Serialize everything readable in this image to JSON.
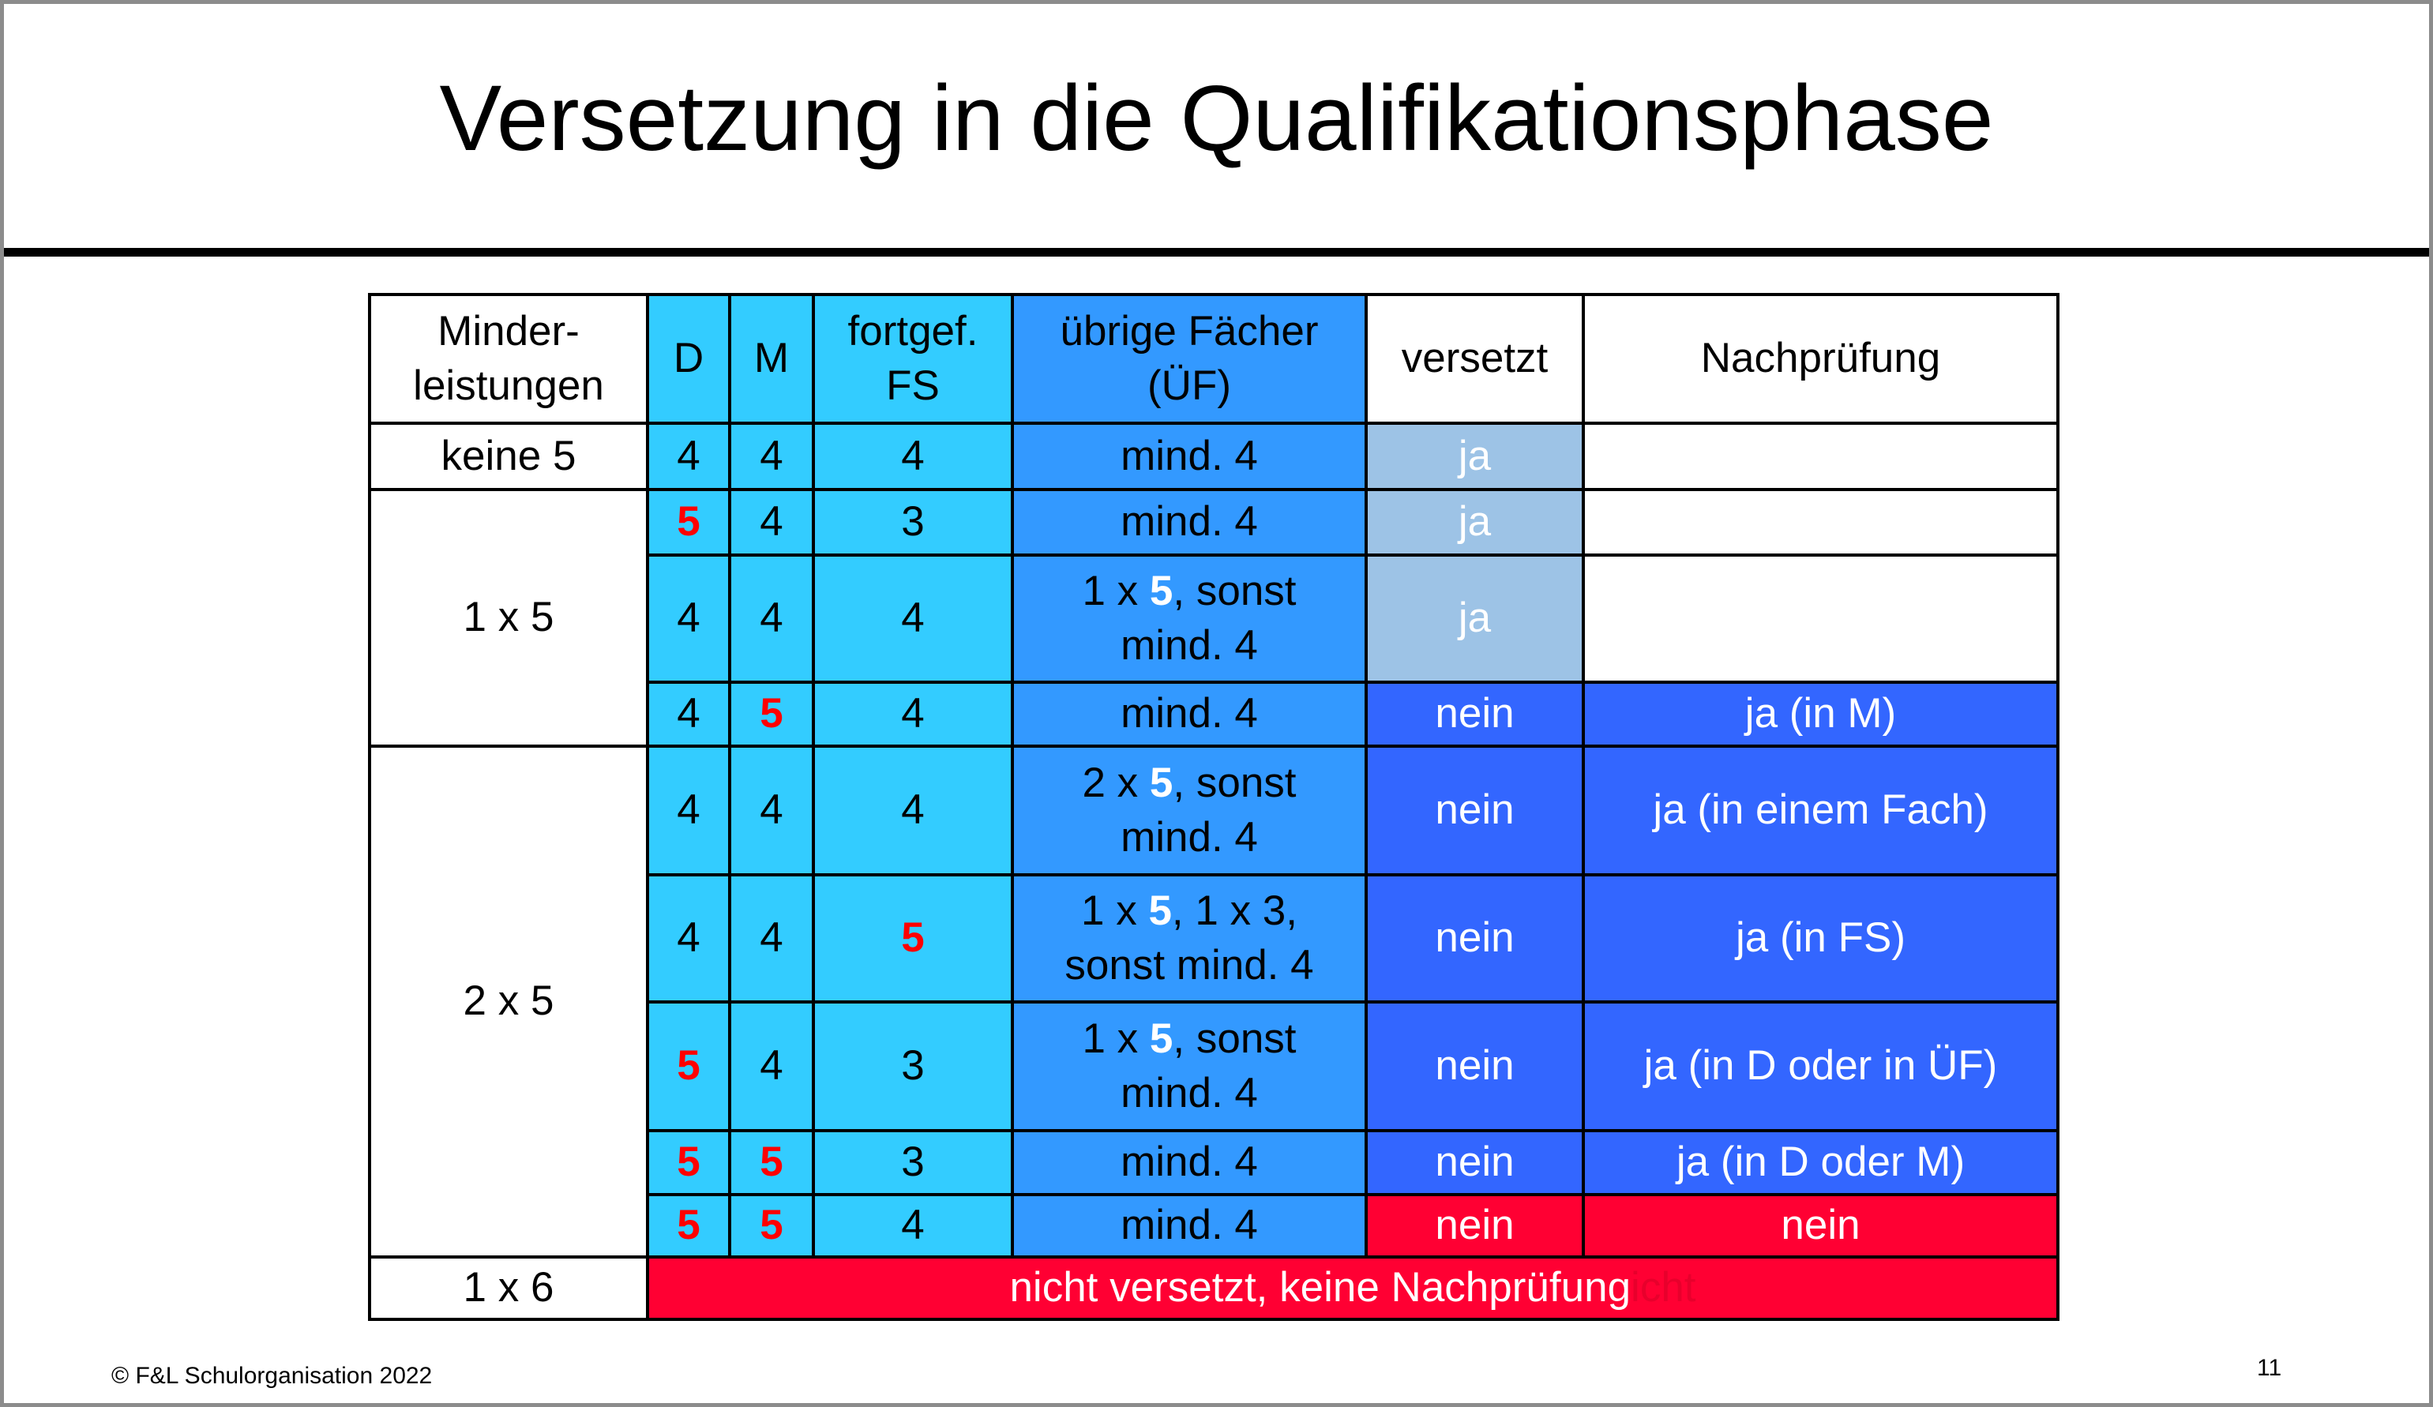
{
  "title": "Versetzung in die Qualifikationsphase",
  "table": {
    "header": [
      [
        "Minder-",
        "leistungen"
      ],
      [
        "D"
      ],
      [
        "M"
      ],
      [
        "fortgef.",
        "FS"
      ],
      [
        "übrige Fächer",
        "(ÜF)"
      ],
      [
        "versetzt"
      ],
      [
        "Nachprüfung"
      ]
    ],
    "groups": [
      {
        "label": "keine 5",
        "rows": [
          {
            "D": 4,
            "M": 4,
            "FS": 4,
            "UF": [
              [
                "mind. 4"
              ]
            ],
            "versetzt": "ja"
          }
        ]
      },
      {
        "label": "1 x 5",
        "rows": [
          {
            "D": 5,
            "M": 4,
            "FS": 3,
            "UF": [
              [
                "mind. 4"
              ]
            ],
            "versetzt": "ja"
          },
          {
            "D": 4,
            "M": 4,
            "FS": 4,
            "UF": [
              [
                "1 x ",
                "5",
                ", sonst"
              ],
              [
                "mind. 4"
              ]
            ],
            "versetzt": "ja"
          },
          {
            "D": 4,
            "M": 5,
            "FS": 4,
            "UF": [
              [
                "mind. 4"
              ]
            ],
            "versetzt": "nein",
            "nachpruefung": "ja (in M)"
          }
        ]
      },
      {
        "label": "2 x 5",
        "rows": [
          {
            "D": 4,
            "M": 4,
            "FS": 4,
            "UF": [
              [
                "2 x ",
                "5",
                ", sonst"
              ],
              [
                "mind. 4"
              ]
            ],
            "versetzt": "nein",
            "nachpruefung": "ja (in einem Fach)"
          },
          {
            "D": 4,
            "M": 4,
            "FS": 5,
            "UF": [
              [
                "1 x ",
                "5",
                ", 1 x 3,"
              ],
              [
                "sonst mind. 4"
              ]
            ],
            "versetzt": "nein",
            "nachpruefung": "ja (in FS)"
          },
          {
            "D": 5,
            "M": 4,
            "FS": 3,
            "UF": [
              [
                "1 x ",
                "5",
                ", sonst"
              ],
              [
                "mind. 4"
              ]
            ],
            "versetzt": "nein",
            "nachpruefung": "ja (in D oder in ÜF)"
          },
          {
            "D": 5,
            "M": 5,
            "FS": 3,
            "UF": [
              [
                "mind. 4"
              ]
            ],
            "versetzt": "nein",
            "nachpruefung": "ja (in D oder M)"
          },
          {
            "D": 5,
            "M": 5,
            "FS": 4,
            "UF": [
              [
                "mind. 4"
              ]
            ],
            "versetzt": "nein",
            "nachpruefung": "nein"
          }
        ]
      },
      {
        "label": "1 x 6",
        "note": [
          "nicht versetzt, keine Nachprüfung",
          "icht"
        ]
      }
    ]
  },
  "footer": {
    "copyright": "© F&L Schulorganisation 2022",
    "page": "11"
  }
}
